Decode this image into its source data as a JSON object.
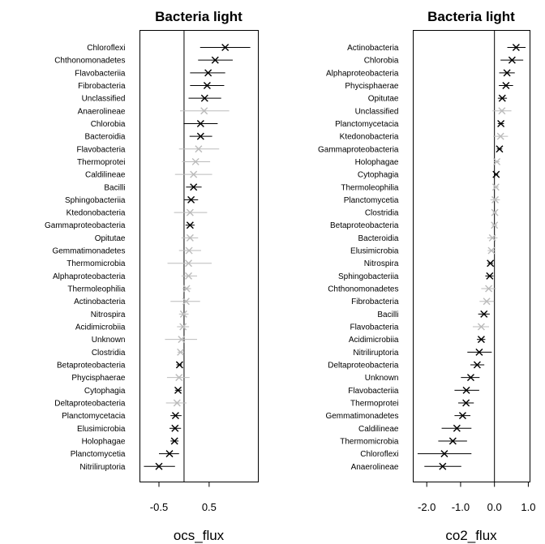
{
  "chart_data": [
    {
      "type": "forest",
      "title": "Bacteria light",
      "xlabel": "ocs_flux",
      "xlim": [
        -0.88,
        1.48
      ],
      "xticks": [
        -0.5,
        0.5
      ],
      "xtick_labels": [
        "-0.5",
        "0.5"
      ],
      "reference_line": 0,
      "colors": {
        "significant": "#000000",
        "not_significant": "#bbbbbb"
      },
      "marker": "x",
      "rows": [
        {
          "label": "Chloroflexi",
          "estimate": 0.82,
          "lower": 0.32,
          "upper": 1.32,
          "significant": true
        },
        {
          "label": "Chthonomonadetes",
          "estimate": 0.62,
          "lower": 0.28,
          "upper": 0.97,
          "significant": true
        },
        {
          "label": "Flavobacteriia",
          "estimate": 0.48,
          "lower": 0.12,
          "upper": 0.82,
          "significant": true
        },
        {
          "label": "Fibrobacteria",
          "estimate": 0.46,
          "lower": 0.12,
          "upper": 0.8,
          "significant": true
        },
        {
          "label": "Unclassified",
          "estimate": 0.41,
          "lower": 0.09,
          "upper": 0.74,
          "significant": true
        },
        {
          "label": "Anaerolineae",
          "estimate": 0.4,
          "lower": -0.08,
          "upper": 0.9,
          "significant": false
        },
        {
          "label": "Chlorobia",
          "estimate": 0.33,
          "lower": -0.01,
          "upper": 0.67,
          "significant": true
        },
        {
          "label": "Bacteroidia",
          "estimate": 0.33,
          "lower": 0.11,
          "upper": 0.56,
          "significant": true
        },
        {
          "label": "Flavobacteria",
          "estimate": 0.29,
          "lower": -0.1,
          "upper": 0.7,
          "significant": false
        },
        {
          "label": "Thermoprotei",
          "estimate": 0.23,
          "lower": -0.04,
          "upper": 0.52,
          "significant": false
        },
        {
          "label": "Caldilineae",
          "estimate": 0.19,
          "lower": -0.18,
          "upper": 0.56,
          "significant": false
        },
        {
          "label": "Bacilli",
          "estimate": 0.19,
          "lower": 0.04,
          "upper": 0.35,
          "significant": true
        },
        {
          "label": "Sphingobacteriia",
          "estimate": 0.14,
          "lower": 0.0,
          "upper": 0.28,
          "significant": true
        },
        {
          "label": "Ktedonobacteria",
          "estimate": 0.12,
          "lower": -0.2,
          "upper": 0.46,
          "significant": false
        },
        {
          "label": "Gammaproteobacteria",
          "estimate": 0.12,
          "lower": 0.03,
          "upper": 0.21,
          "significant": true
        },
        {
          "label": "Opitutae",
          "estimate": 0.12,
          "lower": -0.05,
          "upper": 0.28,
          "significant": false
        },
        {
          "label": "Gemmatimonadetes",
          "estimate": 0.1,
          "lower": -0.1,
          "upper": 0.34,
          "significant": false
        },
        {
          "label": "Thermomicrobia",
          "estimate": 0.09,
          "lower": -0.33,
          "upper": 0.55,
          "significant": false
        },
        {
          "label": "Alphaproteobacteria",
          "estimate": 0.09,
          "lower": -0.05,
          "upper": 0.26,
          "significant": false
        },
        {
          "label": "Thermoleophilia",
          "estimate": 0.05,
          "lower": -0.03,
          "upper": 0.14,
          "significant": false
        },
        {
          "label": "Actinobacteria",
          "estimate": 0.04,
          "lower": -0.27,
          "upper": 0.32,
          "significant": false
        },
        {
          "label": "Nitrospira",
          "estimate": -0.01,
          "lower": -0.1,
          "upper": 0.09,
          "significant": false
        },
        {
          "label": "Acidimicrobiia",
          "estimate": -0.02,
          "lower": -0.14,
          "upper": 0.1,
          "significant": false
        },
        {
          "label": "Unknown",
          "estimate": -0.05,
          "lower": -0.38,
          "upper": 0.26,
          "significant": false
        },
        {
          "label": "Clostridia",
          "estimate": -0.07,
          "lower": -0.13,
          "upper": 0.0,
          "significant": false
        },
        {
          "label": "Betaproteobacteria",
          "estimate": -0.09,
          "lower": -0.15,
          "upper": -0.04,
          "significant": true
        },
        {
          "label": "Phycisphaerae",
          "estimate": -0.1,
          "lower": -0.34,
          "upper": 0.11,
          "significant": false
        },
        {
          "label": "Cytophagia",
          "estimate": -0.12,
          "lower": -0.18,
          "upper": -0.05,
          "significant": true
        },
        {
          "label": "Deltaproteobacteria",
          "estimate": -0.14,
          "lower": -0.36,
          "upper": 0.05,
          "significant": false
        },
        {
          "label": "Planctomycetacia",
          "estimate": -0.17,
          "lower": -0.27,
          "upper": -0.05,
          "significant": true
        },
        {
          "label": "Elusimicrobia",
          "estimate": -0.18,
          "lower": -0.29,
          "upper": -0.06,
          "significant": true
        },
        {
          "label": "Holophagae",
          "estimate": -0.19,
          "lower": -0.27,
          "upper": -0.11,
          "significant": true
        },
        {
          "label": "Planctomycetia",
          "estimate": -0.29,
          "lower": -0.5,
          "upper": -0.1,
          "significant": true
        },
        {
          "label": "Nitriliruptoria",
          "estimate": -0.5,
          "lower": -0.8,
          "upper": -0.18,
          "significant": true
        }
      ]
    },
    {
      "type": "forest",
      "title": "Bacteria light",
      "xlabel": "co2_flux",
      "xlim": [
        -2.4,
        1.05
      ],
      "xticks": [
        -2.0,
        -1.0,
        0.0,
        1.0
      ],
      "xtick_labels": [
        "-2.0",
        "-1.0",
        "0.0",
        "1.0"
      ],
      "reference_line": 0,
      "colors": {
        "significant": "#000000",
        "not_significant": "#bbbbbb"
      },
      "marker": "x",
      "rows": [
        {
          "label": "Actinobacteria",
          "estimate": 0.64,
          "lower": 0.38,
          "upper": 0.92,
          "significant": true
        },
        {
          "label": "Chlorobia",
          "estimate": 0.52,
          "lower": 0.18,
          "upper": 0.85,
          "significant": true
        },
        {
          "label": "Alphaproteobacteria",
          "estimate": 0.37,
          "lower": 0.14,
          "upper": 0.6,
          "significant": true
        },
        {
          "label": "Phycisphaerae",
          "estimate": 0.34,
          "lower": 0.13,
          "upper": 0.55,
          "significant": true
        },
        {
          "label": "Opitutae",
          "estimate": 0.23,
          "lower": 0.1,
          "upper": 0.37,
          "significant": true
        },
        {
          "label": "Unclassified",
          "estimate": 0.22,
          "lower": -0.06,
          "upper": 0.5,
          "significant": false
        },
        {
          "label": "Planctomycetacia",
          "estimate": 0.19,
          "lower": 0.1,
          "upper": 0.28,
          "significant": true
        },
        {
          "label": "Ktedonobacteria",
          "estimate": 0.18,
          "lower": -0.04,
          "upper": 0.4,
          "significant": false
        },
        {
          "label": "Gammaproteobacteria",
          "estimate": 0.15,
          "lower": 0.07,
          "upper": 0.23,
          "significant": true
        },
        {
          "label": "Holophagae",
          "estimate": 0.07,
          "lower": -0.02,
          "upper": 0.15,
          "significant": false
        },
        {
          "label": "Cytophagia",
          "estimate": 0.05,
          "lower": -0.01,
          "upper": 0.11,
          "significant": true
        },
        {
          "label": "Thermoleophilia",
          "estimate": 0.04,
          "lower": -0.04,
          "upper": 0.12,
          "significant": false
        },
        {
          "label": "Planctomycetia",
          "estimate": 0.02,
          "lower": -0.12,
          "upper": 0.16,
          "significant": false
        },
        {
          "label": "Clostridia",
          "estimate": 0.01,
          "lower": -0.05,
          "upper": 0.07,
          "significant": false
        },
        {
          "label": "Betaproteobacteria",
          "estimate": 0.0,
          "lower": -0.08,
          "upper": 0.08,
          "significant": false
        },
        {
          "label": "Bacteroidia",
          "estimate": -0.06,
          "lower": -0.21,
          "upper": 0.09,
          "significant": false
        },
        {
          "label": "Elusimicrobia",
          "estimate": -0.09,
          "lower": -0.2,
          "upper": 0.01,
          "significant": false
        },
        {
          "label": "Nitrospira",
          "estimate": -0.12,
          "lower": -0.2,
          "upper": -0.04,
          "significant": true
        },
        {
          "label": "Sphingobacteriia",
          "estimate": -0.14,
          "lower": -0.27,
          "upper": -0.03,
          "significant": true
        },
        {
          "label": "Chthonomonadetes",
          "estimate": -0.17,
          "lower": -0.39,
          "upper": 0.04,
          "significant": false
        },
        {
          "label": "Fibrobacteria",
          "estimate": -0.23,
          "lower": -0.44,
          "upper": -0.01,
          "significant": false
        },
        {
          "label": "Bacilli",
          "estimate": -0.31,
          "lower": -0.48,
          "upper": -0.14,
          "significant": true
        },
        {
          "label": "Flavobacteria",
          "estimate": -0.39,
          "lower": -0.64,
          "upper": -0.16,
          "significant": false
        },
        {
          "label": "Acidimicrobiia",
          "estimate": -0.39,
          "lower": -0.52,
          "upper": -0.27,
          "significant": true
        },
        {
          "label": "Nitriliruptoria",
          "estimate": -0.45,
          "lower": -0.8,
          "upper": -0.08,
          "significant": true
        },
        {
          "label": "Deltaproteobacteria",
          "estimate": -0.51,
          "lower": -0.71,
          "upper": -0.3,
          "significant": true
        },
        {
          "label": "Unknown",
          "estimate": -0.7,
          "lower": -0.99,
          "upper": -0.44,
          "significant": true
        },
        {
          "label": "Flavobacteriia",
          "estimate": -0.83,
          "lower": -1.18,
          "upper": -0.45,
          "significant": true
        },
        {
          "label": "Thermoprotei",
          "estimate": -0.84,
          "lower": -1.07,
          "upper": -0.61,
          "significant": true
        },
        {
          "label": "Gemmatimonadetes",
          "estimate": -0.94,
          "lower": -1.18,
          "upper": -0.71,
          "significant": true
        },
        {
          "label": "Caldilineae",
          "estimate": -1.11,
          "lower": -1.56,
          "upper": -0.68,
          "significant": true
        },
        {
          "label": "Thermomicrobia",
          "estimate": -1.23,
          "lower": -1.66,
          "upper": -0.81,
          "significant": true
        },
        {
          "label": "Chloroflexi",
          "estimate": -1.48,
          "lower": -2.27,
          "upper": -0.68,
          "significant": true
        },
        {
          "label": "Anaerolineae",
          "estimate": -1.53,
          "lower": -2.07,
          "upper": -0.98,
          "significant": true
        }
      ]
    }
  ]
}
